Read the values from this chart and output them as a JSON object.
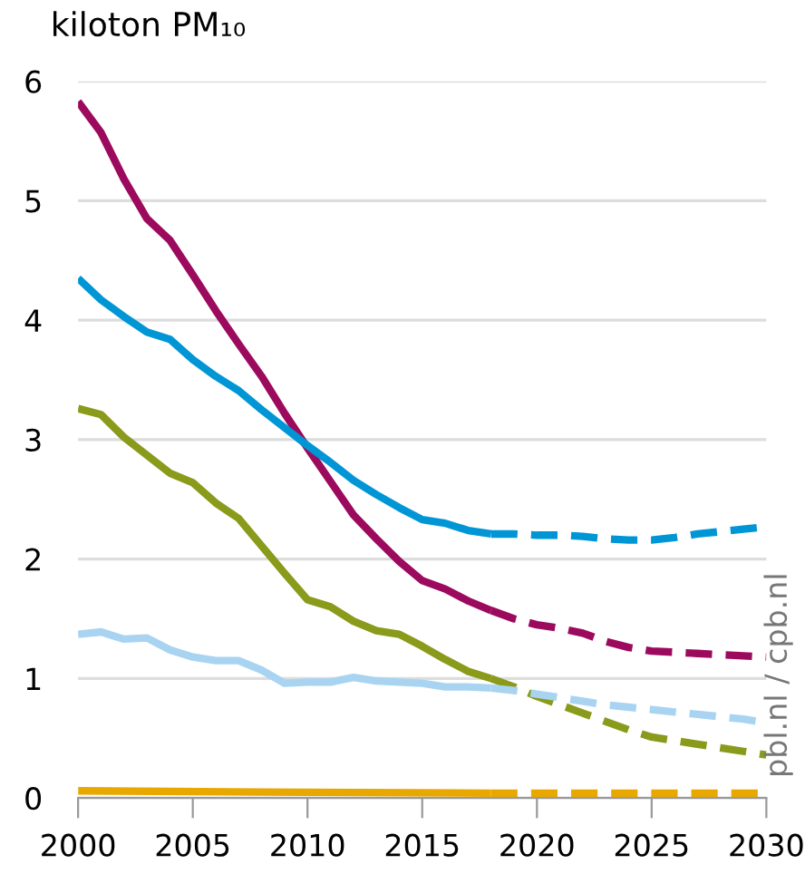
{
  "chart_data": {
    "type": "line",
    "title": "kiloton PM₁₀",
    "series": [
      {
        "color": "#9c0a5e",
        "line_style": "solid",
        "x": [
          2000,
          2001,
          2002,
          2003,
          2004,
          2005,
          2006,
          2007,
          2008,
          2009,
          2010,
          2011,
          2012,
          2013,
          2014,
          2015,
          2016,
          2017,
          2018
        ],
        "values": [
          5.83,
          5.57,
          5.18,
          4.85,
          4.67,
          4.38,
          4.08,
          3.8,
          3.53,
          3.22,
          2.93,
          2.65,
          2.37,
          2.17,
          1.98,
          1.82,
          1.75,
          1.65,
          1.57
        ]
      },
      {
        "color": "#9c0a5e",
        "line_style": "dashed",
        "x": [
          2018,
          2019,
          2020,
          2021,
          2022,
          2023,
          2024,
          2025,
          2026,
          2027,
          2028,
          2029,
          2030
        ],
        "values": [
          1.57,
          1.5,
          1.45,
          1.42,
          1.38,
          1.31,
          1.26,
          1.23,
          1.22,
          1.21,
          1.2,
          1.19,
          1.18
        ]
      },
      {
        "color": "#0096d6",
        "line_style": "solid",
        "x": [
          2000,
          2001,
          2002,
          2003,
          2004,
          2005,
          2006,
          2007,
          2008,
          2009,
          2010,
          2011,
          2012,
          2013,
          2014,
          2015,
          2016,
          2017,
          2018
        ],
        "values": [
          4.35,
          4.17,
          4.03,
          3.9,
          3.84,
          3.67,
          3.53,
          3.41,
          3.25,
          3.1,
          2.95,
          2.81,
          2.66,
          2.54,
          2.43,
          2.33,
          2.3,
          2.24,
          2.21
        ]
      },
      {
        "color": "#0096d6",
        "line_style": "dashed",
        "x": [
          2018,
          2019,
          2020,
          2021,
          2022,
          2023,
          2024,
          2025,
          2026,
          2027,
          2028,
          2029,
          2030
        ],
        "values": [
          2.21,
          2.21,
          2.2,
          2.2,
          2.19,
          2.17,
          2.16,
          2.16,
          2.18,
          2.21,
          2.23,
          2.25,
          2.27
        ]
      },
      {
        "color": "#8a9a1b",
        "line_style": "solid",
        "x": [
          2000,
          2001,
          2002,
          2003,
          2004,
          2005,
          2006,
          2007,
          2008,
          2009,
          2010,
          2011,
          2012,
          2013,
          2014,
          2015,
          2016,
          2017,
          2018
        ],
        "values": [
          3.26,
          3.21,
          3.02,
          2.87,
          2.72,
          2.64,
          2.47,
          2.34,
          2.11,
          1.88,
          1.66,
          1.6,
          1.48,
          1.4,
          1.37,
          1.27,
          1.16,
          1.06,
          1.0
        ]
      },
      {
        "color": "#8a9a1b",
        "line_style": "dashed",
        "x": [
          2018,
          2019,
          2020,
          2021,
          2022,
          2023,
          2024,
          2025,
          2026,
          2027,
          2028,
          2029,
          2030
        ],
        "values": [
          1.0,
          0.93,
          0.85,
          0.78,
          0.71,
          0.64,
          0.57,
          0.51,
          0.48,
          0.45,
          0.42,
          0.39,
          0.36
        ]
      },
      {
        "color": "#a8d4f2",
        "line_style": "solid",
        "x": [
          2000,
          2001,
          2002,
          2003,
          2004,
          2005,
          2006,
          2007,
          2008,
          2009,
          2010,
          2011,
          2012,
          2013,
          2014,
          2015,
          2016,
          2017,
          2018
        ],
        "values": [
          1.37,
          1.39,
          1.33,
          1.34,
          1.24,
          1.18,
          1.15,
          1.15,
          1.07,
          0.96,
          0.97,
          0.97,
          1.01,
          0.98,
          0.97,
          0.96,
          0.93,
          0.93,
          0.92
        ]
      },
      {
        "color": "#a8d4f2",
        "line_style": "dashed",
        "x": [
          2018,
          2019,
          2020,
          2021,
          2022,
          2023,
          2024,
          2025,
          2026,
          2027,
          2028,
          2029,
          2030
        ],
        "values": [
          0.92,
          0.9,
          0.87,
          0.84,
          0.81,
          0.78,
          0.76,
          0.74,
          0.72,
          0.7,
          0.68,
          0.66,
          0.63
        ]
      },
      {
        "color": "#e8a800",
        "line_style": "solid",
        "x": [
          2000,
          2008,
          2018
        ],
        "values": [
          0.06,
          0.05,
          0.04
        ]
      },
      {
        "color": "#e8a800",
        "line_style": "dashed",
        "x": [
          2018,
          2030
        ],
        "values": [
          0.04,
          0.04
        ]
      }
    ],
    "xlim": [
      2000,
      2030
    ],
    "xticks": [
      2000,
      2005,
      2010,
      2015,
      2020,
      2025,
      2030
    ],
    "ylim": [
      0,
      6
    ],
    "yticks": [
      0,
      1,
      2,
      3,
      4,
      5,
      6
    ],
    "grid": "y",
    "legend": false,
    "marker": "none",
    "annotations": [
      "pbl.nl / cpb.nl"
    ]
  }
}
